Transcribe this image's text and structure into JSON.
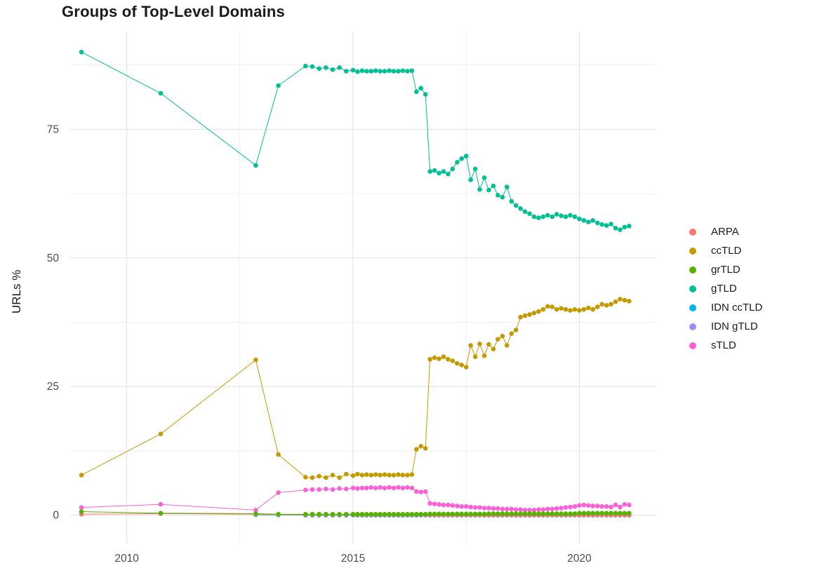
{
  "chart_data": {
    "type": "line",
    "title": "Groups of Top-Level Domains",
    "xlabel": "",
    "ylabel": "URLs %",
    "legend_position": "right",
    "grid": true,
    "xlim": [
      2008.75,
      2021.7
    ],
    "ylim": [
      -5.5,
      94
    ],
    "x_ticks": [
      2010,
      2015,
      2020
    ],
    "y_ticks": [
      0,
      25,
      50,
      75
    ],
    "x_minor_ticks": [
      2012.5,
      2017.5
    ],
    "y_minor_ticks": [
      12.5,
      37.5,
      62.5,
      87.5
    ],
    "x": [
      2009.0,
      2010.75,
      2012.85,
      2013.35,
      2013.95,
      2014.1,
      2014.25,
      2014.4,
      2014.55,
      2014.7,
      2014.85,
      2015.0,
      2015.1,
      2015.2,
      2015.3,
      2015.4,
      2015.5,
      2015.6,
      2015.7,
      2015.8,
      2015.9,
      2016.0,
      2016.1,
      2016.2,
      2016.3,
      2016.4,
      2016.5,
      2016.6,
      2016.7,
      2016.8,
      2016.9,
      2017.0,
      2017.1,
      2017.2,
      2017.3,
      2017.4,
      2017.5,
      2017.6,
      2017.7,
      2017.8,
      2017.9,
      2018.0,
      2018.1,
      2018.2,
      2018.3,
      2018.4,
      2018.5,
      2018.6,
      2018.7,
      2018.8,
      2018.9,
      2019.0,
      2019.1,
      2019.2,
      2019.3,
      2019.4,
      2019.5,
      2019.6,
      2019.7,
      2019.8,
      2019.9,
      2020.0,
      2020.1,
      2020.2,
      2020.3,
      2020.4,
      2020.5,
      2020.6,
      2020.7,
      2020.8,
      2020.9,
      2021.0,
      2021.1
    ],
    "series": [
      {
        "name": "ARPA",
        "color": "#F8766D",
        "values": [
          0.2,
          0.3,
          0.2,
          0.1,
          0.1,
          0.1,
          0.1,
          0.1,
          0.1,
          0.1,
          0.1,
          0.1,
          0.1,
          0.1,
          0.1,
          0.1,
          0.1,
          0.1,
          0.1,
          0.1,
          0.1,
          0.1,
          0.1,
          0.1,
          0.1,
          0.1,
          0.1,
          0.1,
          0.05,
          0.05,
          0.05,
          0.05,
          0.05,
          0.05,
          0.05,
          0.05,
          0.05,
          0.05,
          0.05,
          0.05,
          0.05,
          0.05,
          0.05,
          0.05,
          0.05,
          0.05,
          0.05,
          0.05,
          0.05,
          0.05,
          0.05,
          0.05,
          0.05,
          0.05,
          0.05,
          0.05,
          0.05,
          0.05,
          0.05,
          0.05,
          0.05,
          0.05,
          0.05,
          0.05,
          0.05,
          0.05,
          0.05,
          0.05,
          0.05,
          0.05,
          0.05,
          0.05,
          0.05
        ]
      },
      {
        "name": "ccTLD",
        "color": "#C49A00",
        "values": [
          7.8,
          15.8,
          30.2,
          11.8,
          7.4,
          7.3,
          7.6,
          7.3,
          7.8,
          7.3,
          8.0,
          7.7,
          8.0,
          7.8,
          7.9,
          7.8,
          7.9,
          7.8,
          7.9,
          7.8,
          7.8,
          7.9,
          7.8,
          7.8,
          7.9,
          12.8,
          13.4,
          13.0,
          30.3,
          30.6,
          30.4,
          30.8,
          30.3,
          30.0,
          29.5,
          29.2,
          28.8,
          33.0,
          30.8,
          33.3,
          31.0,
          33.2,
          32.3,
          34.2,
          34.8,
          33.0,
          35.3,
          36.0,
          38.5,
          38.8,
          39.0,
          39.3,
          39.6,
          40.0,
          40.6,
          40.5,
          40.0,
          40.2,
          40.0,
          39.8,
          40.0,
          39.8,
          40.0,
          40.3,
          40.0,
          40.5,
          41.0,
          40.8,
          41.0,
          41.5,
          42.0,
          41.8,
          41.6
        ]
      },
      {
        "name": "grTLD",
        "color": "#53B400",
        "values": [
          0.7,
          0.4,
          0.3,
          0.2,
          0.2,
          0.2,
          0.2,
          0.2,
          0.2,
          0.2,
          0.2,
          0.2,
          0.2,
          0.2,
          0.2,
          0.2,
          0.2,
          0.2,
          0.2,
          0.2,
          0.2,
          0.2,
          0.2,
          0.2,
          0.2,
          0.2,
          0.2,
          0.2,
          0.25,
          0.25,
          0.25,
          0.25,
          0.25,
          0.25,
          0.25,
          0.25,
          0.25,
          0.25,
          0.25,
          0.25,
          0.25,
          0.3,
          0.3,
          0.3,
          0.3,
          0.3,
          0.3,
          0.3,
          0.3,
          0.3,
          0.3,
          0.3,
          0.3,
          0.3,
          0.3,
          0.3,
          0.3,
          0.3,
          0.3,
          0.3,
          0.3,
          0.4,
          0.4,
          0.4,
          0.4,
          0.4,
          0.4,
          0.4,
          0.4,
          0.4,
          0.4,
          0.4,
          0.4
        ]
      },
      {
        "name": "gTLD",
        "color": "#00C094",
        "values": [
          90.0,
          82.0,
          68.0,
          83.5,
          87.3,
          87.2,
          86.8,
          87.0,
          86.6,
          87.0,
          86.3,
          86.5,
          86.2,
          86.4,
          86.3,
          86.3,
          86.4,
          86.3,
          86.3,
          86.4,
          86.3,
          86.3,
          86.4,
          86.3,
          86.4,
          82.3,
          83.0,
          81.8,
          66.8,
          67.0,
          66.5,
          66.8,
          66.3,
          67.3,
          68.6,
          69.3,
          69.8,
          65.2,
          67.3,
          63.3,
          65.6,
          63.2,
          64.0,
          62.2,
          61.8,
          63.8,
          61.0,
          60.2,
          59.6,
          59.0,
          58.6,
          58.0,
          57.8,
          58.0,
          58.3,
          58.0,
          58.5,
          58.2,
          58.0,
          58.3,
          58.0,
          57.6,
          57.3,
          57.0,
          57.3,
          56.8,
          56.5,
          56.3,
          56.6,
          55.8,
          55.5,
          56.0,
          56.2
        ]
      },
      {
        "name": "IDN ccTLD",
        "color": "#00B6EB",
        "values": [
          null,
          null,
          0.1,
          0.05,
          0.02,
          0.02,
          0.02,
          0.02,
          0.02,
          0.02,
          0.02,
          0.02,
          0.02,
          0.02,
          0.02,
          0.02,
          0.02,
          0.02,
          0.02,
          0.02,
          0.02,
          0.02,
          0.02,
          0.02,
          0.02,
          0.02,
          0.02,
          0.02,
          0.02,
          0.02,
          0.02,
          0.02,
          0.02,
          0.02,
          0.02,
          0.02,
          0.02,
          0.02,
          0.02,
          0.02,
          0.02,
          0.02,
          0.02,
          0.02,
          0.02,
          0.02,
          0.02,
          0.02,
          0.02,
          0.02,
          0.02,
          0.02,
          0.02,
          0.02,
          0.02,
          0.02,
          0.02,
          0.02,
          0.02,
          0.02,
          0.02,
          0.02,
          0.02,
          0.02,
          0.02,
          0.02,
          0.02,
          0.02,
          0.02,
          0.02,
          0.02,
          0.02,
          0.02
        ]
      },
      {
        "name": "IDN gTLD",
        "color": "#A58AFF",
        "values": [
          null,
          null,
          null,
          null,
          0.0,
          0.0,
          0.0,
          0.0,
          0.0,
          0.0,
          0.0,
          0.0,
          0.0,
          0.0,
          0.0,
          0.0,
          0.0,
          0.0,
          0.0,
          0.0,
          0.0,
          0.0,
          0.0,
          0.0,
          0.0,
          0.0,
          0.0,
          0.0,
          0.0,
          0.0,
          0.0,
          0.0,
          0.0,
          0.0,
          0.0,
          0.0,
          0.0,
          0.0,
          0.0,
          0.0,
          0.0,
          0.0,
          0.0,
          0.0,
          0.0,
          0.0,
          0.0,
          0.0,
          0.0,
          0.0,
          0.0,
          0.0,
          0.0,
          0.0,
          0.0,
          0.0,
          0.0,
          0.0,
          0.0,
          0.0,
          0.0,
          0.0,
          0.0,
          0.0,
          0.0,
          0.0,
          0.0,
          0.0,
          0.0,
          0.0,
          0.0,
          0.0,
          0.0
        ]
      },
      {
        "name": "sTLD",
        "color": "#FB61D7",
        "values": [
          1.5,
          2.1,
          1.0,
          4.4,
          4.9,
          5.0,
          5.0,
          5.1,
          5.0,
          5.2,
          5.1,
          5.3,
          5.2,
          5.3,
          5.3,
          5.4,
          5.3,
          5.4,
          5.3,
          5.4,
          5.3,
          5.4,
          5.3,
          5.4,
          5.3,
          4.6,
          4.5,
          4.6,
          2.3,
          2.2,
          2.1,
          2.0,
          2.0,
          1.9,
          1.8,
          1.7,
          1.7,
          1.6,
          1.5,
          1.5,
          1.4,
          1.4,
          1.3,
          1.3,
          1.2,
          1.2,
          1.2,
          1.1,
          1.1,
          1.0,
          1.0,
          1.0,
          1.1,
          1.1,
          1.2,
          1.2,
          1.3,
          1.4,
          1.5,
          1.6,
          1.7,
          1.9,
          2.0,
          1.9,
          1.8,
          1.8,
          1.7,
          1.7,
          1.6,
          2.0,
          1.6,
          2.1,
          2.0
        ]
      }
    ]
  },
  "style": {
    "grid_major_color": "#e3e3e3",
    "grid_minor_color": "#ededed",
    "tick_label_color": "#4d4d4d",
    "text_color": "#1a1a1a",
    "background": "#ffffff"
  }
}
